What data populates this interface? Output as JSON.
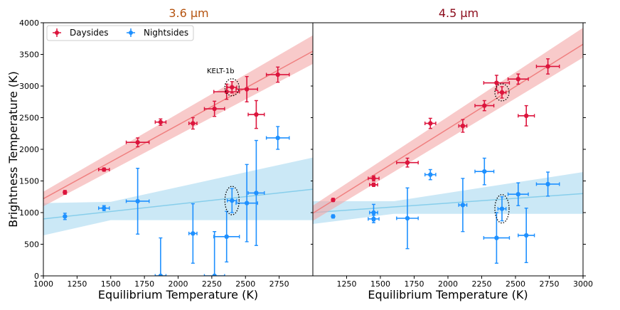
{
  "chart_data": {
    "type": "scatter",
    "shared_ylabel": "Brightness Temperature (K)",
    "ylim": [
      0,
      4000
    ],
    "yticks": [
      0,
      500,
      1000,
      1500,
      2000,
      2500,
      3000,
      3500,
      4000
    ],
    "legend": {
      "placement": "top-left",
      "entries": [
        {
          "name": "Daysides",
          "color": "#dc143c"
        },
        {
          "name": "Nightsides",
          "color": "#1e90ff"
        }
      ]
    },
    "colors": {
      "day": "#dc143c",
      "day_fit": "#f08080",
      "day_band": "#f4a6a6",
      "night": "#1e90ff",
      "night_fit": "#87ceeb",
      "night_band": "#a8d8f0"
    },
    "panels": [
      {
        "title": "3.6 μm",
        "title_color": "#b5530f",
        "xlabel": "Equilibrium Temperature (K)",
        "xlim": [
          1000,
          3000
        ],
        "xticks": [
          1000,
          1250,
          1500,
          1750,
          2000,
          2250,
          2500,
          2750
        ],
        "annotation": {
          "text": "KELT-1b",
          "x": 2400,
          "y": 2980
        },
        "highlight": {
          "day_index": 7,
          "night_index": 7
        },
        "daysides": [
          {
            "x": 1160,
            "y": 1320,
            "xerr": 0,
            "yerr": 30
          },
          {
            "x": 1450,
            "y": 1680,
            "xerr": 40,
            "yerr": 25
          },
          {
            "x": 1700,
            "y": 2110,
            "xerr": 85,
            "yerr": 70
          },
          {
            "x": 1870,
            "y": 2430,
            "xerr": 40,
            "yerr": 50
          },
          {
            "x": 2110,
            "y": 2410,
            "xerr": 30,
            "yerr": 90
          },
          {
            "x": 2270,
            "y": 2640,
            "xerr": 75,
            "yerr": 120
          },
          {
            "x": 2360,
            "y": 2910,
            "xerr": 95,
            "yerr": 120
          },
          {
            "x": 2400,
            "y": 2980,
            "xerr": 35,
            "yerr": 90
          },
          {
            "x": 2510,
            "y": 2950,
            "xerr": 80,
            "yerr": 200
          },
          {
            "x": 2580,
            "y": 2550,
            "xerr": 60,
            "yerr": 220
          },
          {
            "x": 2740,
            "y": 3180,
            "xerr": 85,
            "yerr": 120
          }
        ],
        "nightsides": [
          {
            "x": 1160,
            "y": 940,
            "xerr": 0,
            "yerr": 50
          },
          {
            "x": 1450,
            "y": 1070,
            "xerr": 40,
            "yerr": 40
          },
          {
            "x": 1700,
            "y": 1180,
            "xerr": 85,
            "yerr": 520
          },
          {
            "x": 1870,
            "y": 0,
            "xerr": 40,
            "yerr": 600
          },
          {
            "x": 2110,
            "y": 670,
            "xerr": 30,
            "yerr": 470
          },
          {
            "x": 2270,
            "y": 0,
            "xerr": 75,
            "yerr": 700
          },
          {
            "x": 2360,
            "y": 620,
            "xerr": 95,
            "yerr": 400
          },
          {
            "x": 2400,
            "y": 1190,
            "xerr": 35,
            "yerr": 190
          },
          {
            "x": 2510,
            "y": 1150,
            "xerr": 80,
            "yerr": 610
          },
          {
            "x": 2580,
            "y": 1310,
            "xerr": 60,
            "yerr": 830
          },
          {
            "x": 2740,
            "y": 2180,
            "xerr": 85,
            "yerr": 180
          }
        ],
        "day_fit": {
          "x": [
            1000,
            3000
          ],
          "y": [
            1220,
            3550
          ],
          "lo": [
            1100,
            3350
          ],
          "hi": [
            1330,
            3800
          ]
        },
        "night_fit": {
          "x": [
            1000,
            3000
          ],
          "y": [
            900,
            1370
          ],
          "band_x": [
            1000,
            1500,
            3000
          ],
          "lo": [
            640,
            880,
            880
          ],
          "hi": [
            1150,
            1170,
            1870
          ]
        }
      },
      {
        "title": "4.5 μm",
        "title_color": "#8b0a1a",
        "xlabel": "Equilibrium Temperature (K)",
        "xlim": [
          1000,
          3000
        ],
        "xticks": [
          1250,
          1500,
          1750,
          2000,
          2250,
          2500,
          2750,
          3000
        ],
        "annotation": null,
        "highlight": {
          "day_index": 8,
          "night_index": 8
        },
        "daysides": [
          {
            "x": 1150,
            "y": 1200,
            "xerr": 0,
            "yerr": 25
          },
          {
            "x": 1450,
            "y": 1540,
            "xerr": 40,
            "yerr": 40
          },
          {
            "x": 1450,
            "y": 1440,
            "xerr": 30,
            "yerr": 25
          },
          {
            "x": 1700,
            "y": 1790,
            "xerr": 80,
            "yerr": 70
          },
          {
            "x": 1870,
            "y": 2410,
            "xerr": 40,
            "yerr": 80
          },
          {
            "x": 2110,
            "y": 2370,
            "xerr": 30,
            "yerr": 100
          },
          {
            "x": 2270,
            "y": 2690,
            "xerr": 70,
            "yerr": 80
          },
          {
            "x": 2360,
            "y": 3050,
            "xerr": 95,
            "yerr": 120
          },
          {
            "x": 2400,
            "y": 2900,
            "xerr": 30,
            "yerr": 90
          },
          {
            "x": 2520,
            "y": 3110,
            "xerr": 75,
            "yerr": 80
          },
          {
            "x": 2580,
            "y": 2530,
            "xerr": 60,
            "yerr": 160
          },
          {
            "x": 2740,
            "y": 3310,
            "xerr": 85,
            "yerr": 120
          }
        ],
        "nightsides": [
          {
            "x": 1150,
            "y": 940,
            "xerr": 0,
            "yerr": 25
          },
          {
            "x": 1450,
            "y": 1000,
            "xerr": 30,
            "yerr": 130
          },
          {
            "x": 1450,
            "y": 900,
            "xerr": 40,
            "yerr": 60
          },
          {
            "x": 1700,
            "y": 910,
            "xerr": 80,
            "yerr": 480
          },
          {
            "x": 1870,
            "y": 1600,
            "xerr": 40,
            "yerr": 80
          },
          {
            "x": 2110,
            "y": 1120,
            "xerr": 30,
            "yerr": 420
          },
          {
            "x": 2270,
            "y": 1650,
            "xerr": 70,
            "yerr": 210
          },
          {
            "x": 2360,
            "y": 600,
            "xerr": 95,
            "yerr": 400
          },
          {
            "x": 2400,
            "y": 1060,
            "xerr": 30,
            "yerr": 190
          },
          {
            "x": 2520,
            "y": 1290,
            "xerr": 75,
            "yerr": 180
          },
          {
            "x": 2580,
            "y": 640,
            "xerr": 60,
            "yerr": 430
          },
          {
            "x": 2740,
            "y": 1450,
            "xerr": 85,
            "yerr": 190
          }
        ],
        "day_fit": {
          "x": [
            1000,
            3000
          ],
          "y": [
            990,
            3660
          ],
          "lo": [
            870,
            3450
          ],
          "hi": [
            1110,
            3920
          ]
        },
        "night_fit": {
          "x": [
            1000,
            3000
          ],
          "y": [
            1000,
            1300
          ],
          "band_x": [
            1000,
            1600,
            3000
          ],
          "lo": [
            820,
            980,
            980
          ],
          "hi": [
            1180,
            1180,
            1640
          ]
        }
      }
    ]
  }
}
